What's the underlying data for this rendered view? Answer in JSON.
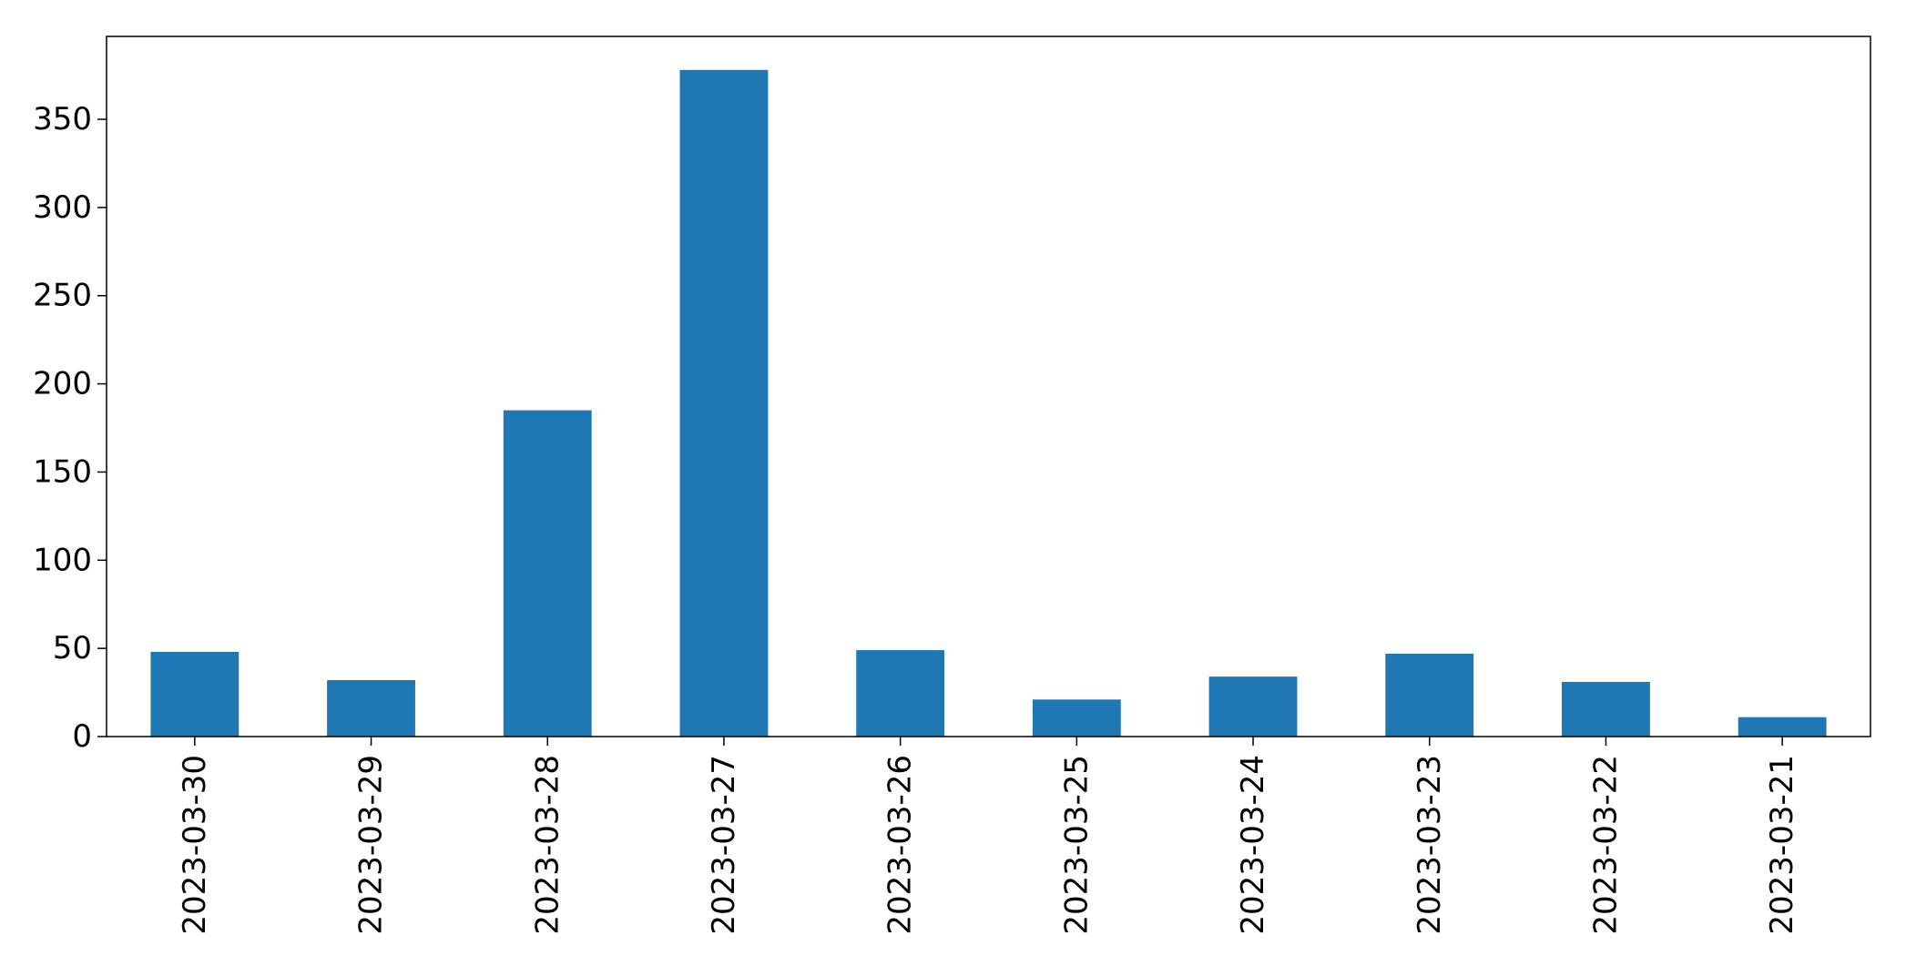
{
  "chart_data": {
    "type": "bar",
    "title": "",
    "xlabel": "",
    "ylabel": "",
    "categories": [
      "2023-03-30",
      "2023-03-29",
      "2023-03-28",
      "2023-03-27",
      "2023-03-26",
      "2023-03-25",
      "2023-03-24",
      "2023-03-23",
      "2023-03-22",
      "2023-03-21"
    ],
    "values": [
      48,
      32,
      185,
      378,
      49,
      21,
      34,
      47,
      31,
      11
    ],
    "ylim": [
      0,
      397
    ],
    "yticks": [
      0,
      50,
      100,
      150,
      200,
      250,
      300,
      350
    ],
    "bar_color": "#1f77b4",
    "grid": false,
    "legend": "none"
  }
}
